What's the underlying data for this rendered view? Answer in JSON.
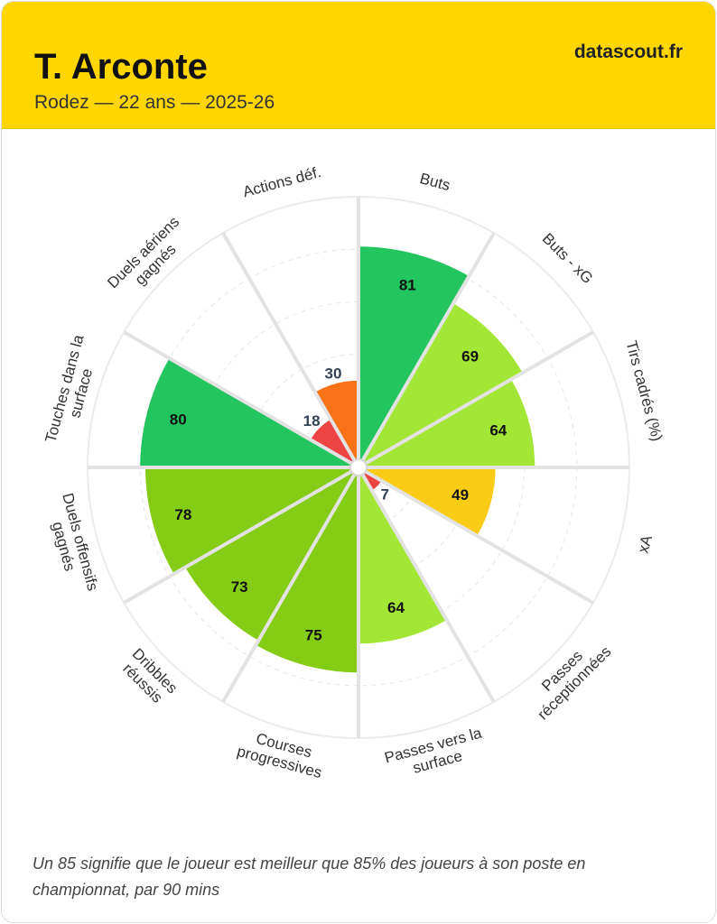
{
  "header": {
    "player_name": "T. Arconte",
    "subtitle": "Rodez — 22 ans — 2025-26",
    "brand": "datascout.fr"
  },
  "footnote": "Un 85 signifie que le joueur est meilleur que 85% des joueurs à son poste en championnat, par 90 mins",
  "colors": {
    "header_bg": "#ffd600",
    "green_dark": "#22c55e",
    "green": "#84cc16",
    "green_light": "#a3e635",
    "yellow": "#facc15",
    "orange": "#f97316",
    "red": "#ef4444"
  },
  "chart_data": {
    "type": "polar-bar",
    "scale": [
      0,
      100
    ],
    "categories": [
      {
        "label": [
          "Buts"
        ],
        "value": 81
      },
      {
        "label": [
          "Buts - xG"
        ],
        "value": 69
      },
      {
        "label": [
          "Tirs cadrés (%)"
        ],
        "value": 64
      },
      {
        "label": [
          "xA"
        ],
        "value": 49
      },
      {
        "label": [
          "Passes",
          "réceptionnées"
        ],
        "value": 7
      },
      {
        "label": [
          "Passes vers la",
          "surface"
        ],
        "value": 64
      },
      {
        "label": [
          "Courses",
          "progressives"
        ],
        "value": 75
      },
      {
        "label": [
          "Dribbles",
          "réussis"
        ],
        "value": 73
      },
      {
        "label": [
          "Duels offensifs",
          "gagnés"
        ],
        "value": 78
      },
      {
        "label": [
          "Touches dans la",
          "surface"
        ],
        "value": 80
      },
      {
        "label": [
          "Duels aériens",
          "gagnés"
        ],
        "value": 18
      },
      {
        "label": [
          "Actions déf."
        ],
        "value": 30
      }
    ]
  }
}
